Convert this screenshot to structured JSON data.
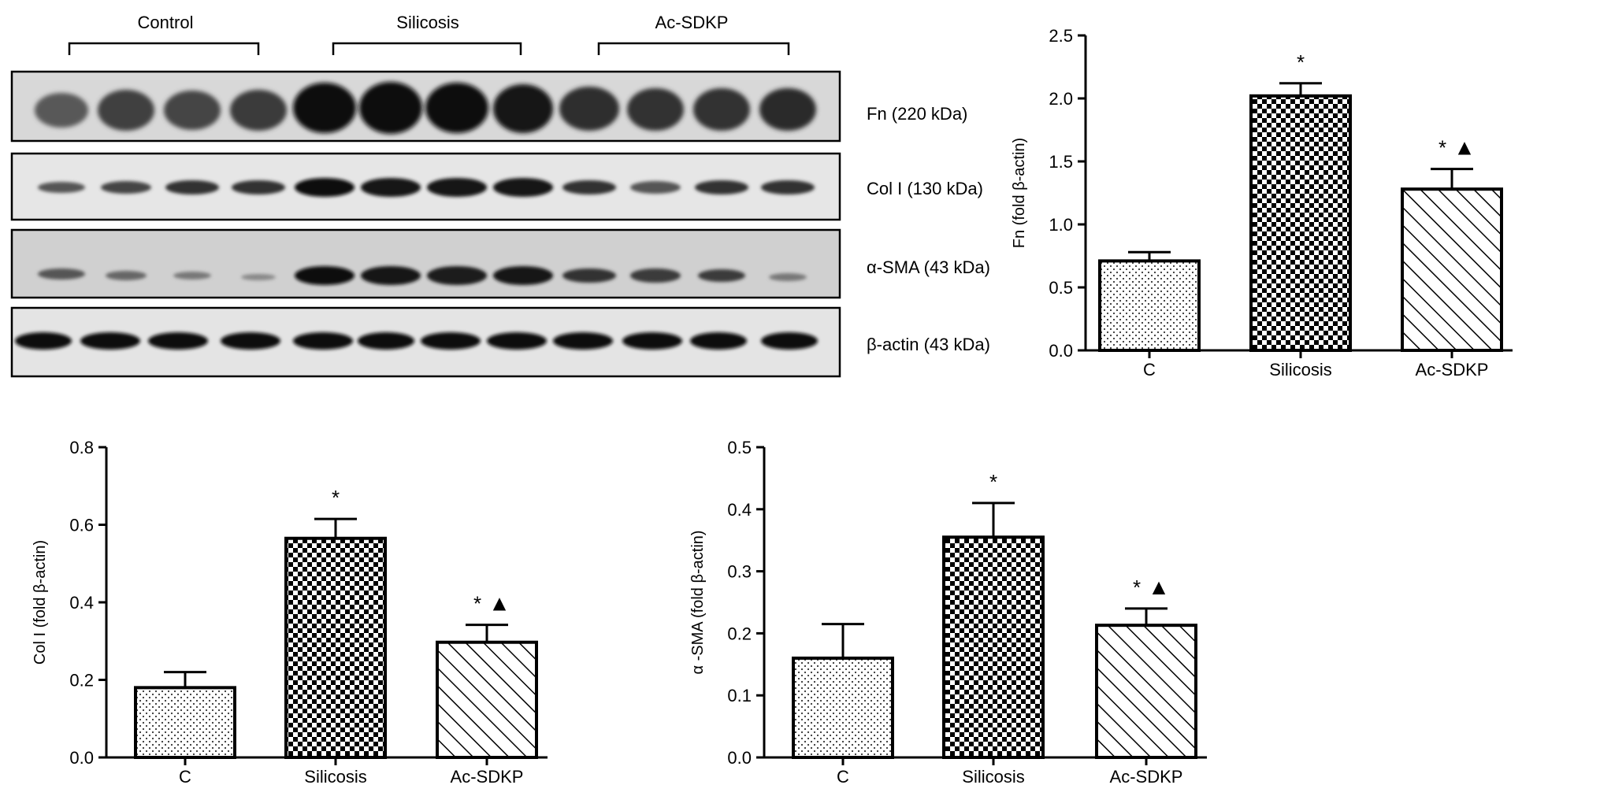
{
  "blot": {
    "groups": [
      "Control",
      "Silicosis",
      "Ac-SDKP"
    ],
    "bands": [
      "Fn (220 kDa)",
      "Col I (130 kDa)",
      "α-SMA (43 kDa)",
      "β-actin (43 kDa)"
    ],
    "lanes_per_group": 4
  },
  "chart_data": [
    {
      "type": "bar",
      "categories": [
        "C",
        "Silicosis",
        "Ac-SDKP"
      ],
      "values": [
        0.71,
        2.02,
        1.28
      ],
      "error": [
        0.07,
        0.1,
        0.16
      ],
      "annotations": [
        "",
        "*",
        "* ▲"
      ],
      "ylabel": "Fn (fold  β-actin)",
      "ylim": [
        0,
        2.5
      ],
      "yticks": [
        "0.0",
        "0.5",
        "1.0",
        "1.5",
        "2.0",
        "2.5"
      ],
      "patterns": [
        "dots",
        "checker",
        "hatch"
      ]
    },
    {
      "type": "bar",
      "categories": [
        "C",
        "Silicosis",
        "Ac-SDKP"
      ],
      "values": [
        0.18,
        0.565,
        0.297
      ],
      "error": [
        0.04,
        0.05,
        0.045
      ],
      "annotations": [
        "",
        "*",
        "* ▲"
      ],
      "ylabel": "Col I (fold  β-actin)",
      "ylim": [
        0,
        0.8
      ],
      "yticks": [
        "0.0",
        "0.2",
        "0.4",
        "0.6",
        "0.8"
      ],
      "patterns": [
        "dots",
        "checker",
        "hatch"
      ]
    },
    {
      "type": "bar",
      "categories": [
        "C",
        "Silicosis",
        "Ac-SDKP"
      ],
      "values": [
        0.16,
        0.355,
        0.213
      ],
      "error": [
        0.055,
        0.055,
        0.027
      ],
      "annotations": [
        "",
        "*",
        "*▲"
      ],
      "ylabel": "α -SMA (fold  β-actin)",
      "ylim": [
        0,
        0.5
      ],
      "yticks": [
        "0.0",
        "0.1",
        "0.2",
        "0.3",
        "0.4",
        "0.5"
      ],
      "patterns": [
        "dots",
        "checker",
        "hatch"
      ]
    }
  ]
}
